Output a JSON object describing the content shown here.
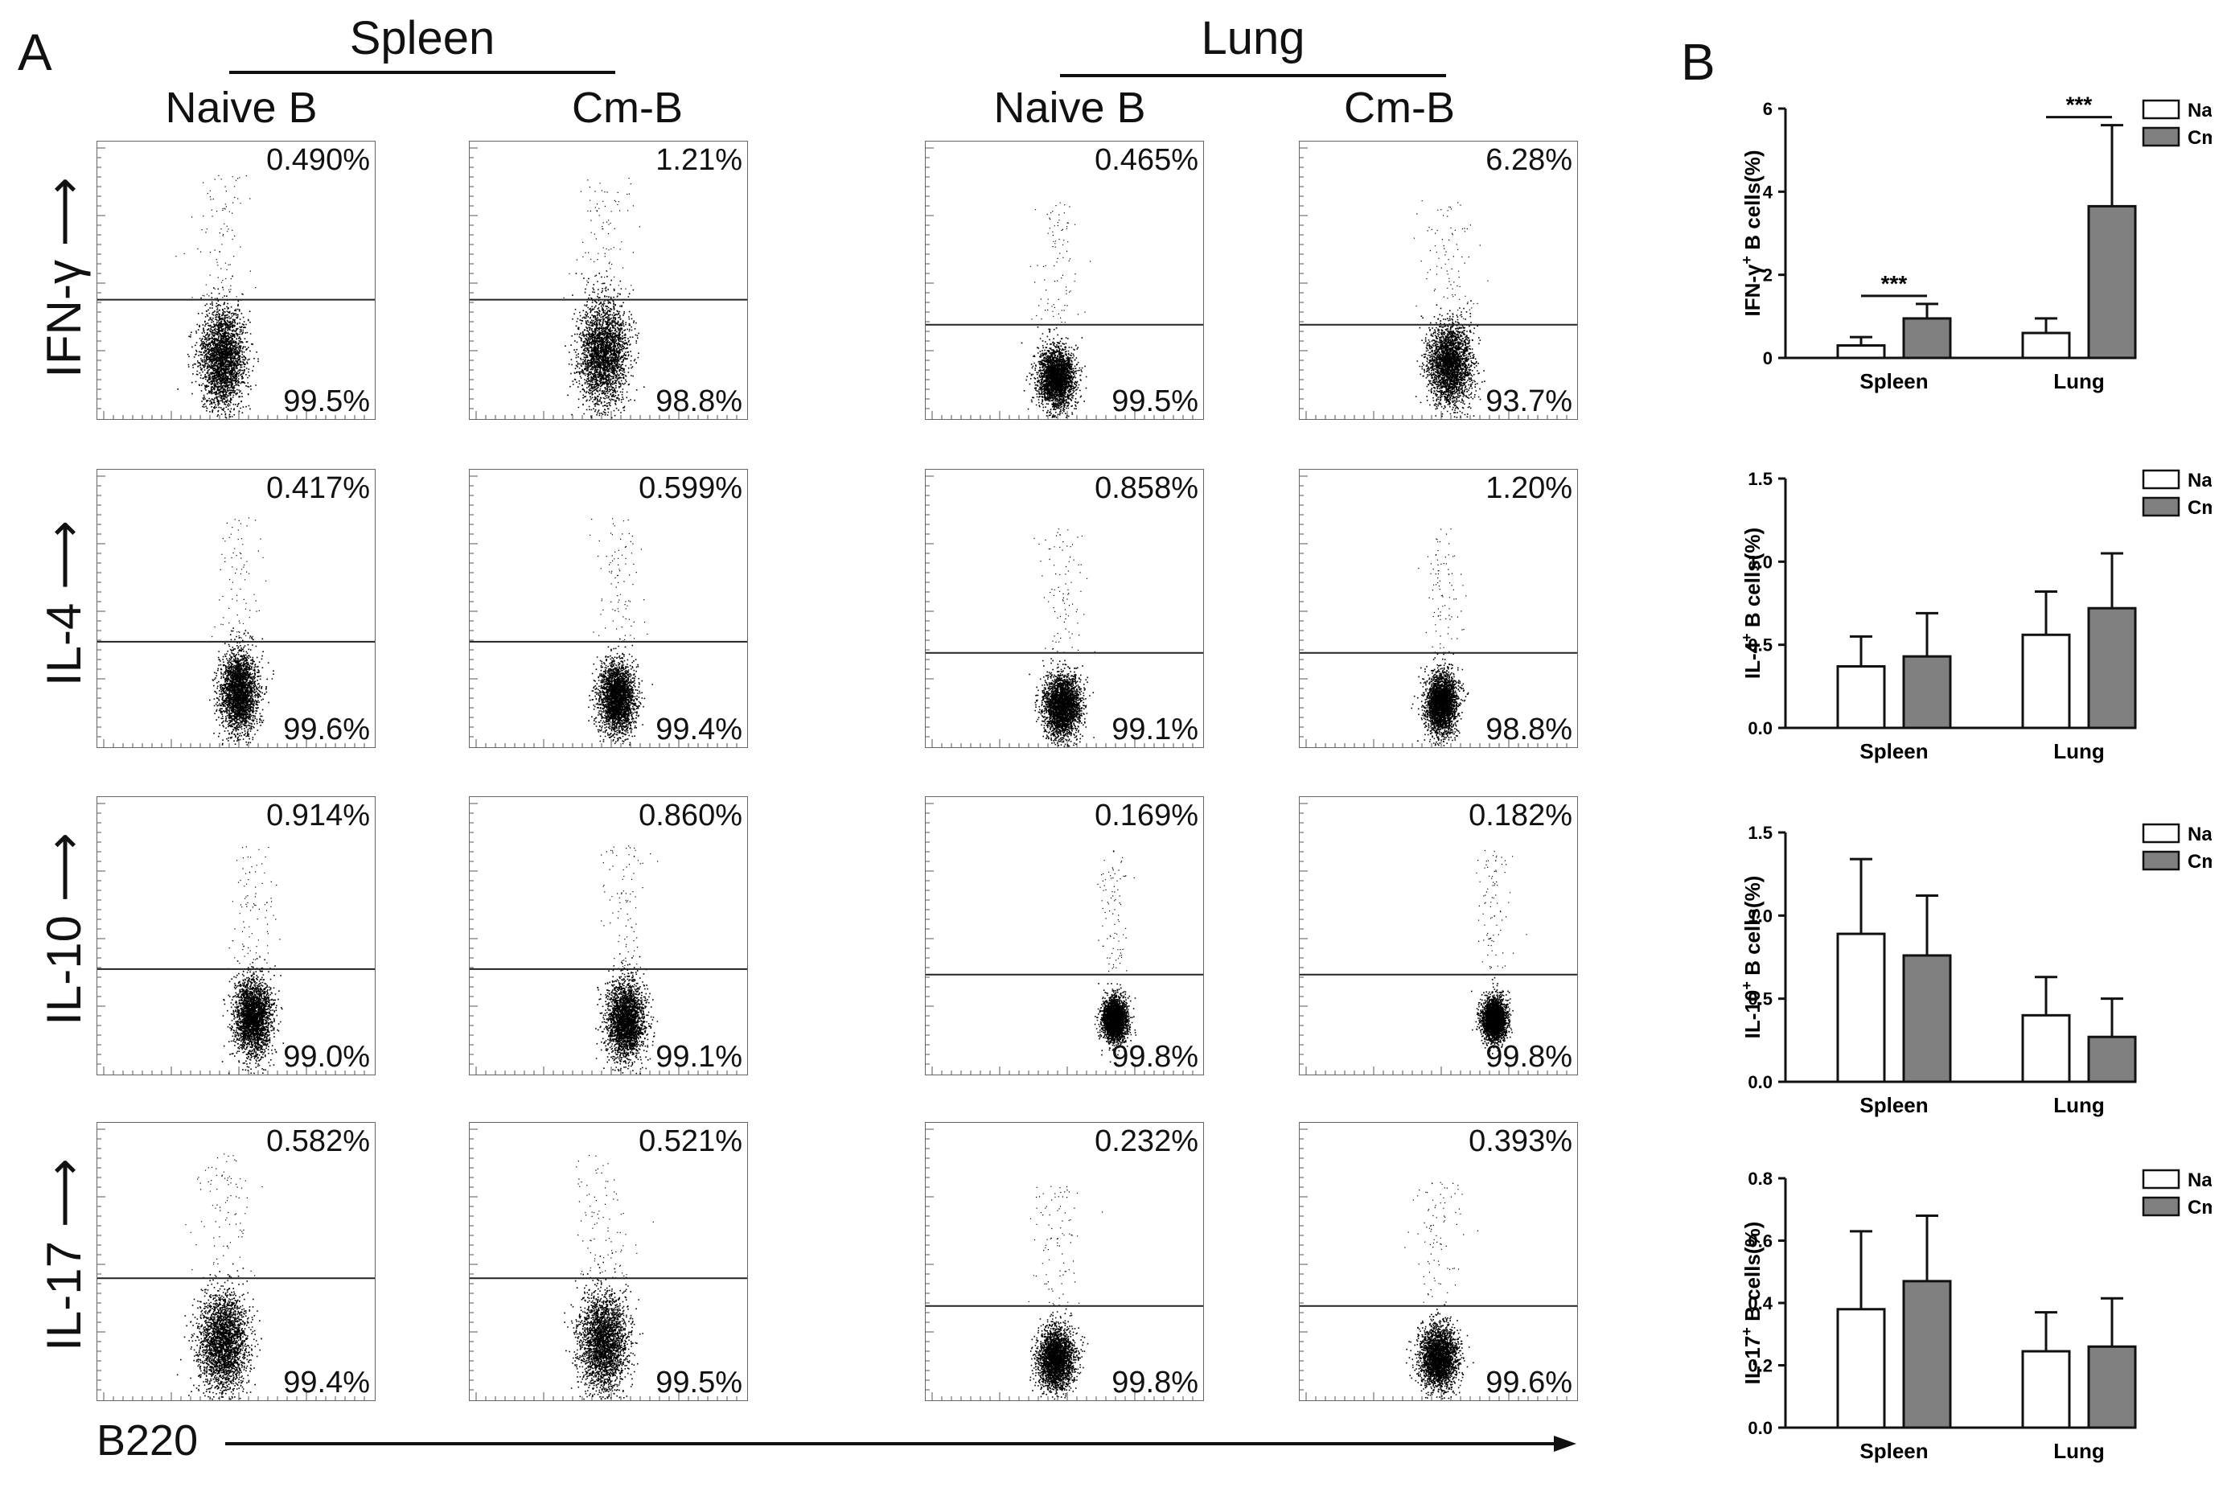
{
  "panel_a": {
    "letter": "A",
    "groups": [
      {
        "title": "Spleen",
        "columns": [
          "Naive B",
          "Cm-B"
        ]
      },
      {
        "title": "Lung",
        "columns": [
          "Naive B",
          "Cm-B"
        ]
      }
    ],
    "rows": [
      {
        "label": "IFN-γ",
        "values": [
          {
            "upper": "0.490%",
            "lower": "99.5%"
          },
          {
            "upper": "1.21%",
            "lower": "98.8%"
          },
          {
            "upper": "0.465%",
            "lower": "99.5%"
          },
          {
            "upper": "6.28%",
            "lower": "93.7%"
          }
        ]
      },
      {
        "label": "IL-4",
        "values": [
          {
            "upper": "0.417%",
            "lower": "99.6%"
          },
          {
            "upper": "0.599%",
            "lower": "99.4%"
          },
          {
            "upper": "0.858%",
            "lower": "99.1%"
          },
          {
            "upper": "1.20%",
            "lower": "98.8%"
          }
        ]
      },
      {
        "label": "IL-10",
        "values": [
          {
            "upper": "0.914%",
            "lower": "99.0%"
          },
          {
            "upper": "0.860%",
            "lower": "99.1%"
          },
          {
            "upper": "0.169%",
            "lower": "99.8%"
          },
          {
            "upper": "0.182%",
            "lower": "99.8%"
          }
        ]
      },
      {
        "label": "IL-17",
        "values": [
          {
            "upper": "0.582%",
            "lower": "99.4%"
          },
          {
            "upper": "0.521%",
            "lower": "99.5%"
          },
          {
            "upper": "0.232%",
            "lower": "99.8%"
          },
          {
            "upper": "0.393%",
            "lower": "99.6%"
          }
        ]
      }
    ],
    "x_axis_label": "B220"
  },
  "panel_b": {
    "letter": "B"
  },
  "colors": {
    "naive": "#ffffff",
    "cmb": "#808080",
    "stroke": "#111111",
    "dots": "#000000"
  },
  "chart_data": [
    {
      "type": "bar",
      "title": "",
      "ylabel": "IFN-γ+ B cells(%)",
      "ylabel_main": "IFN-γ",
      "ylabel_sup": "+",
      "ylabel_rest": " B cells(%)",
      "xlabel": "",
      "categories": [
        "Spleen",
        "Lung"
      ],
      "ylim": [
        0,
        6
      ],
      "yticks": [
        "0",
        "2",
        "4",
        "6"
      ],
      "ytick_values": [
        0,
        2,
        4,
        6
      ],
      "series": [
        {
          "name": "Naive B",
          "values": [
            0.3,
            0.6
          ],
          "errors": [
            0.2,
            0.35
          ]
        },
        {
          "name": "Cm-B",
          "values": [
            0.95,
            3.65
          ],
          "errors": [
            0.35,
            1.95
          ]
        }
      ],
      "annotations": [
        "***",
        "***"
      ]
    },
    {
      "type": "bar",
      "title": "",
      "ylabel": "IL-4+ B cells(%)",
      "ylabel_main": "IL-4",
      "ylabel_sup": "+",
      "ylabel_rest": " B cells(%)",
      "xlabel": "",
      "categories": [
        "Spleen",
        "Lung"
      ],
      "ylim": [
        0,
        1.5
      ],
      "yticks": [
        "0.0",
        "0.5",
        "1.0",
        "1.5"
      ],
      "ytick_values": [
        0,
        0.5,
        1.0,
        1.5
      ],
      "series": [
        {
          "name": "Naive B",
          "values": [
            0.37,
            0.56
          ],
          "errors": [
            0.18,
            0.26
          ]
        },
        {
          "name": "Cm-B",
          "values": [
            0.43,
            0.72
          ],
          "errors": [
            0.26,
            0.33
          ]
        }
      ],
      "annotations": []
    },
    {
      "type": "bar",
      "title": "",
      "ylabel": "IL-10+ B cells(%)",
      "ylabel_main": "IL-10",
      "ylabel_sup": "+",
      "ylabel_rest": " B cells(%)",
      "xlabel": "",
      "categories": [
        "Spleen",
        "Lung"
      ],
      "ylim": [
        0,
        1.5
      ],
      "yticks": [
        "0.0",
        "0.5",
        "1.0",
        "1.5"
      ],
      "ytick_values": [
        0,
        0.5,
        1.0,
        1.5
      ],
      "series": [
        {
          "name": "Naive B",
          "values": [
            0.89,
            0.4
          ],
          "errors": [
            0.45,
            0.23
          ]
        },
        {
          "name": "Cm-B",
          "values": [
            0.76,
            0.27
          ],
          "errors": [
            0.36,
            0.23
          ]
        }
      ],
      "annotations": []
    },
    {
      "type": "bar",
      "title": "",
      "ylabel": "IL-17+ B cells(%)",
      "ylabel_main": "IL-17",
      "ylabel_sup": "+",
      "ylabel_rest": " B cells(%)",
      "xlabel": "",
      "categories": [
        "Spleen",
        "Lung"
      ],
      "ylim": [
        0,
        0.8
      ],
      "yticks": [
        "0.0",
        "0.2",
        "0.4",
        "0.6",
        "0.8"
      ],
      "ytick_values": [
        0,
        0.2,
        0.4,
        0.6,
        0.8
      ],
      "series": [
        {
          "name": "Naive B",
          "values": [
            0.38,
            0.245
          ],
          "errors": [
            0.25,
            0.125
          ]
        },
        {
          "name": "Cm-B",
          "values": [
            0.47,
            0.26
          ],
          "errors": [
            0.21,
            0.155
          ]
        }
      ],
      "annotations": []
    }
  ]
}
